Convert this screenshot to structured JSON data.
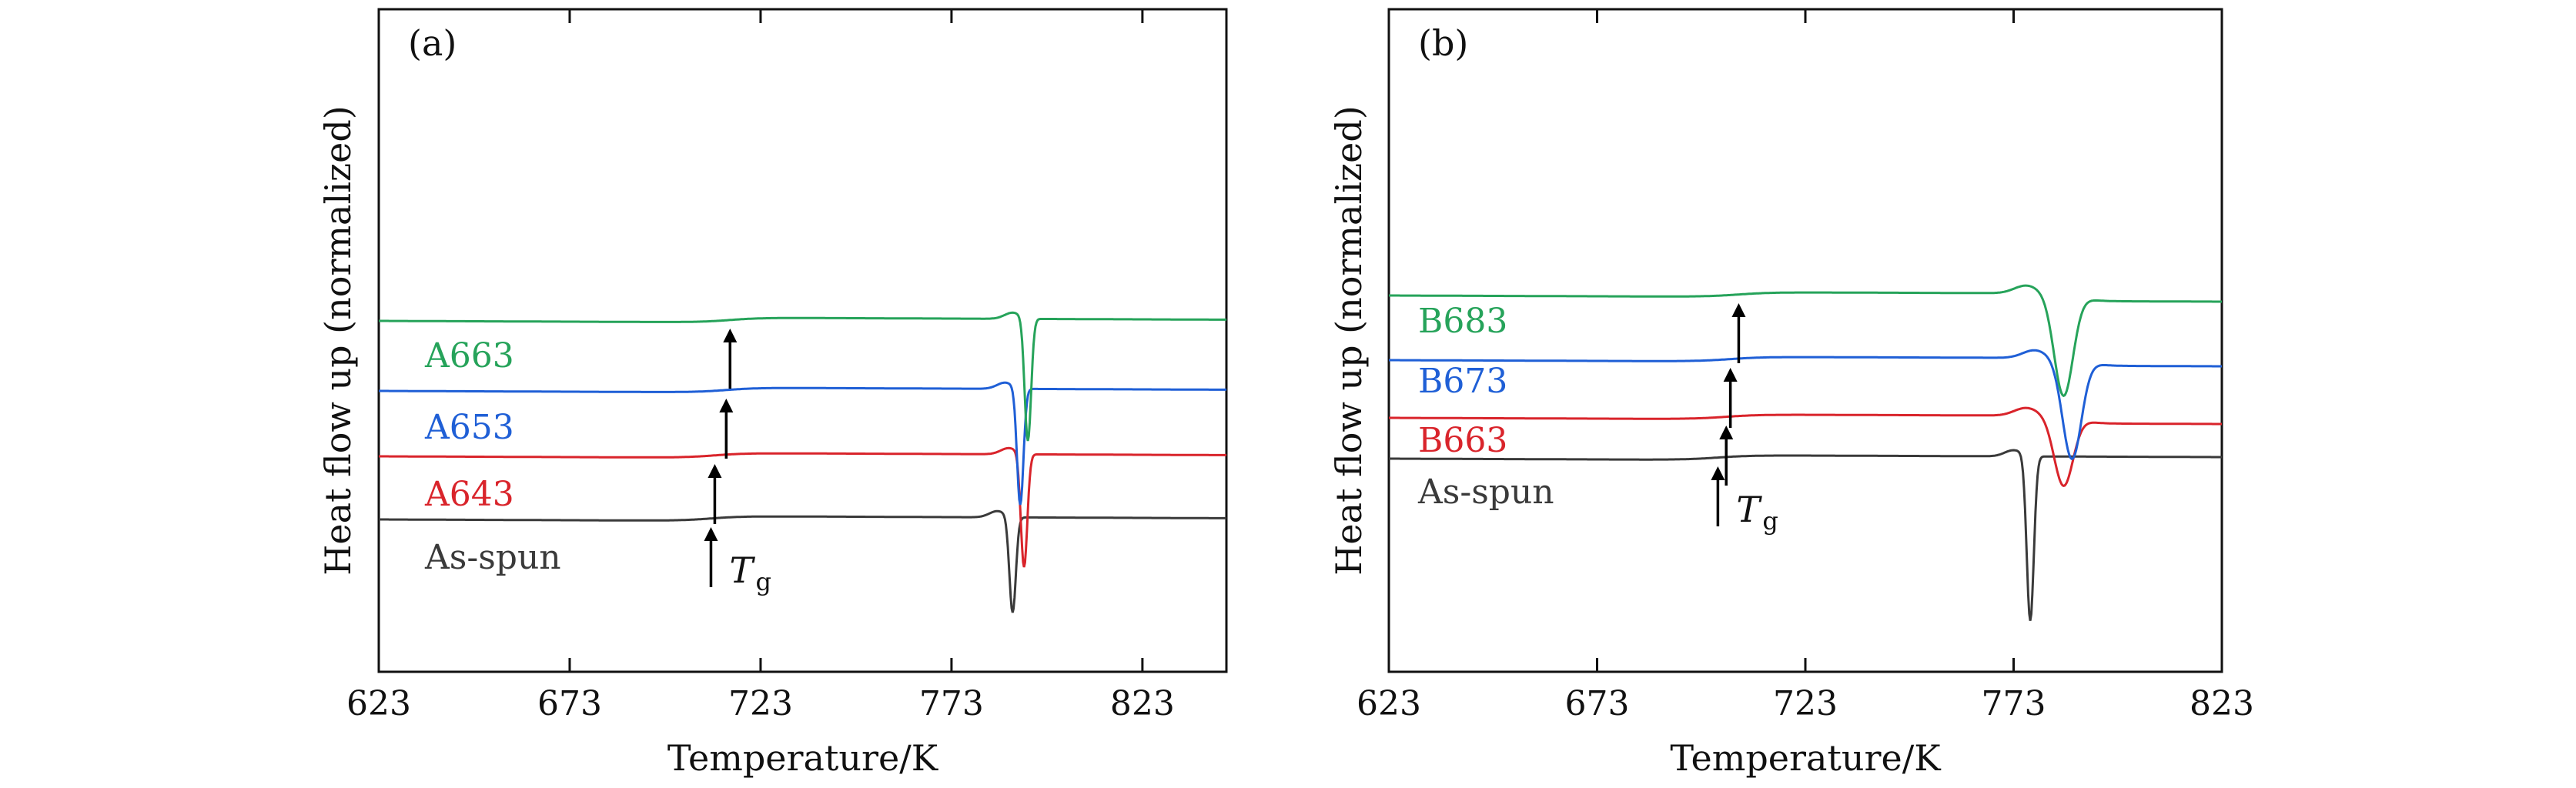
{
  "colors": {
    "as_spun": "#3a3a3a",
    "red": "#d9242b",
    "blue": "#1f5fd6",
    "green": "#26a35a",
    "arrow": "#000000"
  },
  "chart_data": [
    {
      "type": "line",
      "panel_label": "(a)",
      "xlabel": "Temperature/K",
      "ylabel": "Heat flow up (normalized)",
      "xlim": [
        623,
        845
      ],
      "xticks": [
        623,
        673,
        723,
        773,
        823
      ],
      "grid": false,
      "tg_label": "T",
      "tg_subscript": "g",
      "series": [
        {
          "name": "As-spun",
          "color_key": "as_spun",
          "offset": 0,
          "tg": 710,
          "tm": 789,
          "depth": 125,
          "kind": "sharp"
        },
        {
          "name": "A643",
          "color_key": "red",
          "offset": 82,
          "tg": 711,
          "tm": 792,
          "depth": 148,
          "kind": "sharp"
        },
        {
          "name": "A653",
          "color_key": "blue",
          "offset": 167,
          "tg": 714,
          "tm": 791,
          "depth": 152,
          "kind": "sharp"
        },
        {
          "name": "A663",
          "color_key": "green",
          "offset": 258,
          "tg": 715,
          "tm": 793,
          "depth": 160,
          "kind": "sharp"
        }
      ]
    },
    {
      "type": "line",
      "panel_label": "(b)",
      "xlabel": "Temperature/K",
      "ylabel": "Heat flow up (normalized)",
      "xlim": [
        623,
        823
      ],
      "xticks": [
        623,
        673,
        723,
        773,
        823
      ],
      "grid": false,
      "tg_label": "T",
      "tg_subscript": "g",
      "series": [
        {
          "name": "As-spun",
          "color_key": "as_spun",
          "offset": 0,
          "tg": 702,
          "tm": 777,
          "depth": 215,
          "kind": "sharp"
        },
        {
          "name": "B663",
          "color_key": "red",
          "offset": 53,
          "tg": 704,
          "tm": 785,
          "depth": 90,
          "kind": "broad"
        },
        {
          "name": "B673",
          "color_key": "blue",
          "offset": 128,
          "tg": 705,
          "tm": 787,
          "depth": 130,
          "kind": "broad"
        },
        {
          "name": "B683",
          "color_key": "green",
          "offset": 212,
          "tg": 707,
          "tm": 785,
          "depth": 132,
          "kind": "broad"
        }
      ]
    }
  ]
}
